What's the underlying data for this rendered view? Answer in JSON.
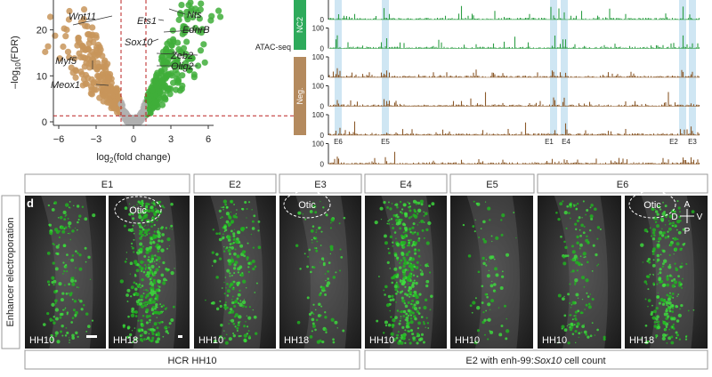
{
  "volcano": {
    "ylabel": {
      "prefix": "–log",
      "sub": "10",
      "suffix": "(FDR)"
    },
    "xlabel": {
      "prefix": "log",
      "sub": "2",
      "suffix": "(fold change)"
    },
    "xlim": [
      -7,
      7
    ],
    "ylim": [
      0,
      26.5
    ],
    "xticks": [
      {
        "value": -6,
        "label": "−6"
      },
      {
        "value": -3,
        "label": "−3"
      },
      0,
      3,
      6
    ],
    "yticks": [
      0,
      10,
      20
    ],
    "fc_threshold": [
      -1,
      1
    ],
    "fdr_threshold": 1.3,
    "genes": [
      "Wnt11",
      "Myf5",
      "Meox1",
      "Ets1",
      "Nts",
      "Sox10",
      "EdnrB",
      "Zeb2",
      "Olig2"
    ]
  },
  "atac": {
    "assay": "ATAC-seq",
    "groups": [
      "NC2",
      "Neg."
    ],
    "track_ymax": 100,
    "track_ymin": 0,
    "regions": [
      "E6",
      "E5",
      "E1",
      "E4",
      "E2",
      "E3"
    ]
  },
  "panel_letter": "d",
  "row_label": "Enhancer electroporation",
  "headers": [
    "E1",
    "E2",
    "E3",
    "E4",
    "E5",
    "E6"
  ],
  "otic": "Otic",
  "stages": [
    "HH10",
    "HH18",
    "HH10",
    "HH18",
    "HH10",
    "HH10",
    "HH10",
    "HH18"
  ],
  "axes_compass": [
    "A",
    "D",
    "V",
    "P"
  ],
  "bottom_headers": [
    "HCR HH10",
    {
      "prefix": "E2 with enh-99:",
      "italic": "Sox10",
      "suffix": " cell count"
    }
  ]
}
